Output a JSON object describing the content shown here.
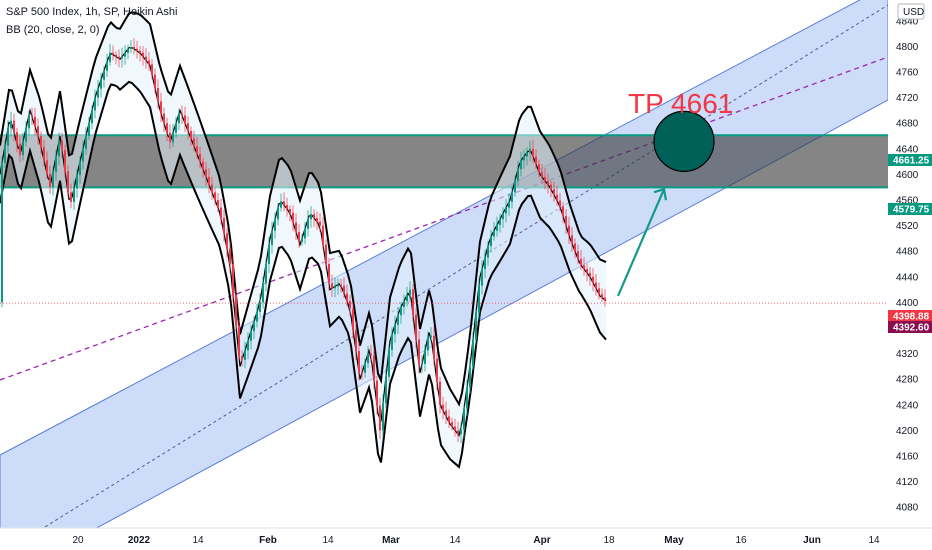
{
  "header": {
    "symbol_line": "S&P 500 Index, 1h, SP, Heikin Ashi",
    "indicator_line": "BB (20, close, 2, 0)",
    "currency_button": "USD"
  },
  "annotation": {
    "tp_label": "TP 4661"
  },
  "chart_data": {
    "type": "candlestick",
    "series_name": "S&P 500 Index",
    "interval": "1h",
    "chart_style": "Heikin Ashi",
    "indicator": "BB (20, close, 2, 0)",
    "ylim": [
      4060,
      4860
    ],
    "y_ticks": [
      4080,
      4120,
      4160,
      4200,
      4240,
      4280,
      4320,
      4360,
      4400,
      4440,
      4480,
      4520,
      4560,
      4600,
      4640,
      4680,
      4720,
      4760,
      4800,
      4840
    ],
    "x_tick_labels": [
      "20",
      "2022",
      "14",
      "Feb",
      "14",
      "Mar",
      "14",
      "Apr",
      "18",
      "May",
      "16",
      "Jun",
      "14"
    ],
    "bold_x_ticks": [
      "2022",
      "Feb",
      "Mar",
      "Apr",
      "May",
      "Jun"
    ],
    "price_path": [
      [
        0,
        4600
      ],
      [
        10,
        4690
      ],
      [
        20,
        4630
      ],
      [
        30,
        4700
      ],
      [
        40,
        4650
      ],
      [
        50,
        4580
      ],
      [
        60,
        4660
      ],
      [
        70,
        4550
      ],
      [
        80,
        4620
      ],
      [
        95,
        4720
      ],
      [
        110,
        4790
      ],
      [
        120,
        4780
      ],
      [
        130,
        4800
      ],
      [
        140,
        4790
      ],
      [
        150,
        4770
      ],
      [
        160,
        4700
      ],
      [
        170,
        4650
      ],
      [
        180,
        4700
      ],
      [
        190,
        4660
      ],
      [
        200,
        4620
      ],
      [
        210,
        4580
      ],
      [
        220,
        4540
      ],
      [
        230,
        4460
      ],
      [
        240,
        4300
      ],
      [
        250,
        4350
      ],
      [
        260,
        4400
      ],
      [
        270,
        4500
      ],
      [
        280,
        4560
      ],
      [
        290,
        4540
      ],
      [
        300,
        4490
      ],
      [
        310,
        4540
      ],
      [
        320,
        4520
      ],
      [
        330,
        4420
      ],
      [
        340,
        4430
      ],
      [
        350,
        4390
      ],
      [
        360,
        4280
      ],
      [
        370,
        4330
      ],
      [
        380,
        4200
      ],
      [
        390,
        4340
      ],
      [
        400,
        4390
      ],
      [
        410,
        4420
      ],
      [
        420,
        4290
      ],
      [
        430,
        4360
      ],
      [
        440,
        4240
      ],
      [
        450,
        4210
      ],
      [
        460,
        4190
      ],
      [
        470,
        4300
      ],
      [
        480,
        4440
      ],
      [
        490,
        4500
      ],
      [
        500,
        4530
      ],
      [
        510,
        4560
      ],
      [
        520,
        4620
      ],
      [
        530,
        4640
      ],
      [
        540,
        4600
      ],
      [
        550,
        4580
      ],
      [
        560,
        4550
      ],
      [
        570,
        4500
      ],
      [
        580,
        4460
      ],
      [
        590,
        4440
      ],
      [
        600,
        4410
      ],
      [
        608,
        4400
      ]
    ],
    "bollinger_bands": {
      "period": 20,
      "stddev": 2
    },
    "annotations": {
      "resistance_zone": {
        "top": 4661.25,
        "bottom": 4579.75,
        "fill": "#333333"
      },
      "channel": {
        "upper_line": [
          {
            "x": "Dec 20",
            "y": 4560
          },
          {
            "x": "Jun 14",
            "y": 5200
          }
        ],
        "lower_line": [
          {
            "x": "Feb 01",
            "y": 4030
          },
          {
            "x": "Jun 14",
            "y": 4640
          }
        ],
        "fill": "#bcd0f5"
      },
      "target_circle": {
        "price": 4661,
        "label": "TP 4661",
        "fill": "#006158"
      },
      "arrow_toward_target": {
        "from_price": 4410,
        "to_price": 4580,
        "color": "#14998a"
      },
      "dashed_trendlines": [
        "purple",
        "blue midline"
      ]
    },
    "price_labels": [
      {
        "value": "4661.25",
        "color": "#089981"
      },
      {
        "value": "4579.75",
        "color": "#089981"
      },
      {
        "value": "4398.88",
        "color": "#f23645"
      },
      {
        "value": "4392.60",
        "color": "#880e4f"
      }
    ],
    "current_price": 4398.88
  },
  "colors": {
    "up_candle": "#089981",
    "down_candle": "#f23645",
    "bb_line": "#000000",
    "bb_fill": "#e3f2fd"
  }
}
